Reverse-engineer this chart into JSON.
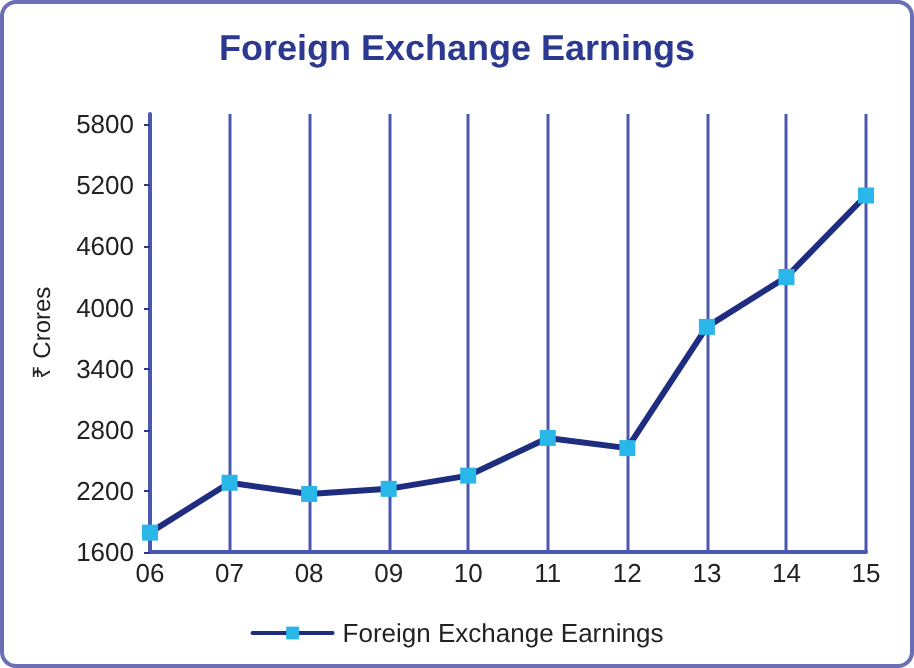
{
  "chart_data": {
    "type": "line",
    "title": "Foreign Exchange Earnings",
    "ylabel": "₹ Crores",
    "categories": [
      "06",
      "07",
      "08",
      "09",
      "10",
      "11",
      "12",
      "13",
      "14",
      "15"
    ],
    "series": [
      {
        "name": "Foreign Exchange Earnings",
        "color": "#1f2d80",
        "values": [
          1790,
          2280,
          2170,
          2220,
          2350,
          2720,
          2620,
          3810,
          4300,
          5100
        ]
      }
    ],
    "marker": "square",
    "line_style": "solid",
    "ylim": [
      1600,
      5900
    ],
    "yticks": [
      1600,
      2200,
      2800,
      3400,
      4000,
      4600,
      5200,
      5800
    ],
    "grid": "x",
    "legend": "bottom"
  }
}
